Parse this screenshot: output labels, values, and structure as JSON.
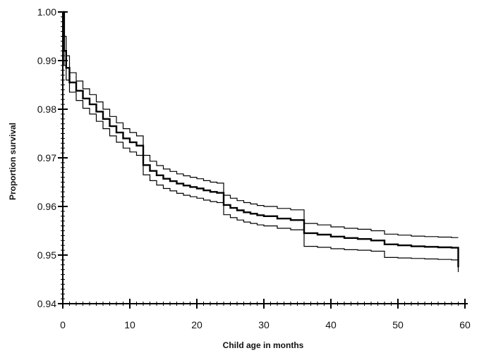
{
  "chart_data": {
    "type": "line",
    "title": "",
    "xlabel": "Child age in months",
    "ylabel": "Proportion survival",
    "xlim": [
      0,
      60
    ],
    "ylim": [
      0.94,
      1.0
    ],
    "x_ticks": [
      0,
      10,
      20,
      30,
      40,
      50,
      60
    ],
    "x_tick_labels": [
      "0",
      "10",
      "20",
      "30",
      "40",
      "50",
      "60"
    ],
    "y_ticks": [
      0.94,
      0.95,
      0.96,
      0.97,
      0.98,
      0.99,
      1.0
    ],
    "y_tick_labels": [
      "0.94",
      "0.95",
      "0.96",
      "0.97",
      "0.98",
      "0.99",
      "1.00"
    ],
    "grid": false,
    "legend": "none",
    "step": true,
    "colors": {
      "line": "#000000",
      "axis": "#000000",
      "text": "#111111"
    },
    "series": [
      {
        "role": "estimate",
        "x": [
          0,
          0.2,
          0.5,
          1,
          2,
          3,
          4,
          5,
          6,
          7,
          8,
          9,
          10,
          11,
          12,
          13,
          14,
          15,
          16,
          17,
          18,
          19,
          20,
          21,
          22,
          23,
          24,
          25,
          26,
          27,
          28,
          29,
          30,
          32,
          34,
          36,
          38,
          40,
          42,
          44,
          46,
          48,
          50,
          52,
          54,
          56,
          58,
          59
        ],
        "y": [
          1.0,
          0.992,
          0.9885,
          0.9855,
          0.9838,
          0.9822,
          0.981,
          0.9795,
          0.978,
          0.9765,
          0.9752,
          0.974,
          0.9732,
          0.9725,
          0.9685,
          0.9673,
          0.9664,
          0.9657,
          0.9652,
          0.9647,
          0.9643,
          0.964,
          0.9637,
          0.9633,
          0.963,
          0.9628,
          0.9603,
          0.9597,
          0.9592,
          0.9588,
          0.9585,
          0.9582,
          0.958,
          0.9575,
          0.9572,
          0.9545,
          0.9542,
          0.9538,
          0.9535,
          0.9533,
          0.953,
          0.9522,
          0.952,
          0.9518,
          0.9517,
          0.9516,
          0.9515,
          0.9475
        ]
      },
      {
        "role": "upper-ci",
        "x": [
          0,
          0.2,
          0.5,
          1,
          2,
          3,
          4,
          5,
          6,
          7,
          8,
          9,
          10,
          11,
          12,
          13,
          14,
          15,
          16,
          17,
          18,
          19,
          20,
          21,
          22,
          23,
          24,
          25,
          26,
          27,
          28,
          29,
          30,
          32,
          34,
          36,
          38,
          40,
          42,
          44,
          46,
          48,
          50,
          52,
          54,
          56,
          58,
          59
        ],
        "y": [
          1.0,
          0.995,
          0.991,
          0.9875,
          0.9858,
          0.9842,
          0.983,
          0.9815,
          0.98,
          0.9785,
          0.9772,
          0.976,
          0.9752,
          0.9745,
          0.9705,
          0.9693,
          0.9684,
          0.9677,
          0.9672,
          0.9667,
          0.9663,
          0.966,
          0.9657,
          0.9653,
          0.965,
          0.9648,
          0.9623,
          0.9617,
          0.9612,
          0.9608,
          0.9605,
          0.9602,
          0.96,
          0.9596,
          0.9593,
          0.9565,
          0.9562,
          0.9558,
          0.9555,
          0.9553,
          0.955,
          0.9543,
          0.9541,
          0.9539,
          0.9538,
          0.9537,
          0.9536,
          0.9536
        ]
      },
      {
        "role": "lower-ci",
        "x": [
          0,
          0.2,
          0.5,
          1,
          2,
          3,
          4,
          5,
          6,
          7,
          8,
          9,
          10,
          11,
          12,
          13,
          14,
          15,
          16,
          17,
          18,
          19,
          20,
          21,
          22,
          23,
          24,
          25,
          26,
          27,
          28,
          29,
          30,
          32,
          34,
          36,
          38,
          40,
          42,
          44,
          46,
          48,
          50,
          52,
          54,
          56,
          58,
          59
        ],
        "y": [
          1.0,
          0.989,
          0.986,
          0.9835,
          0.9818,
          0.9802,
          0.979,
          0.9775,
          0.976,
          0.9745,
          0.9732,
          0.972,
          0.9712,
          0.9705,
          0.9665,
          0.9653,
          0.9644,
          0.9637,
          0.9632,
          0.9627,
          0.9623,
          0.962,
          0.9617,
          0.9613,
          0.961,
          0.9608,
          0.9583,
          0.9577,
          0.9572,
          0.9568,
          0.9565,
          0.9562,
          0.956,
          0.9555,
          0.9552,
          0.9518,
          0.9516,
          0.9513,
          0.9511,
          0.951,
          0.9508,
          0.9495,
          0.9494,
          0.9493,
          0.9492,
          0.9491,
          0.949,
          0.9465
        ]
      }
    ]
  }
}
